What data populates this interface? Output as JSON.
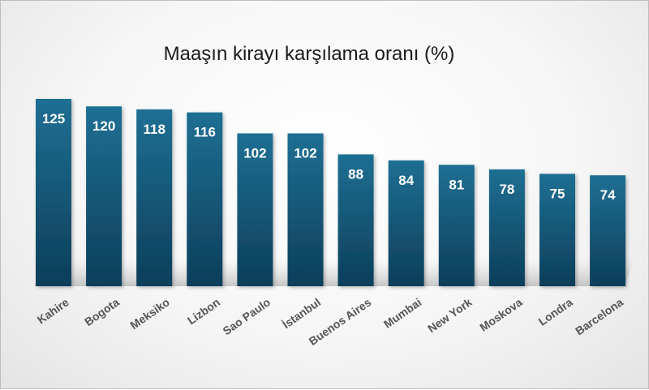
{
  "colors": {
    "bar_top": "#1e6f93",
    "bar_bottom": "#0d3e5a",
    "label": "#ffffff",
    "axis_text": "#555555"
  },
  "chart_data": {
    "type": "bar",
    "title": "Maaşın kirayı karşılama oranı (%)",
    "categories": [
      "Kahire",
      "Bogota",
      "Meksiko",
      "Lizbon",
      "Sao Paulo",
      "İstanbul",
      "Buenos Aires",
      "Mumbai",
      "New York",
      "Moskova",
      "Londra",
      "Barcelona"
    ],
    "values": [
      125,
      120,
      118,
      116,
      102,
      102,
      88,
      84,
      81,
      78,
      75,
      74
    ],
    "xlabel": "",
    "ylabel": "",
    "ylim": [
      0,
      125
    ],
    "grid": false,
    "data_labels": true
  }
}
